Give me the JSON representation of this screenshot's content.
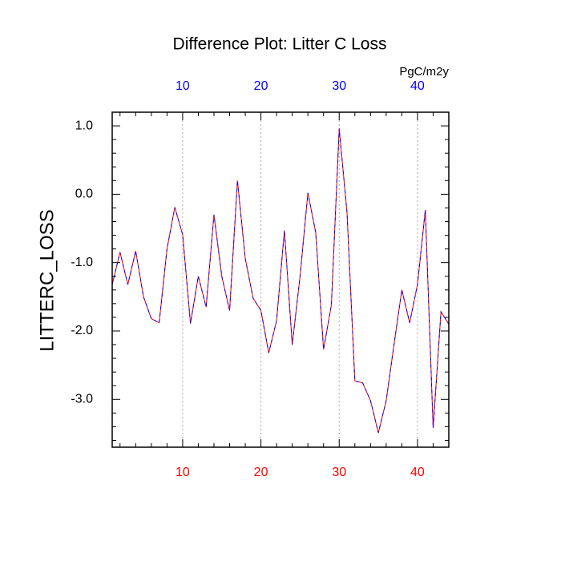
{
  "chart_data": {
    "type": "line",
    "title": "Difference Plot: Litter C Loss",
    "ylabel": "LITTERC_LOSS",
    "units": "PgC/m2y",
    "x": [
      1,
      2,
      3,
      4,
      5,
      6,
      7,
      8,
      9,
      10,
      11,
      12,
      13,
      14,
      15,
      16,
      17,
      18,
      19,
      20,
      21,
      22,
      23,
      24,
      25,
      26,
      27,
      28,
      29,
      30,
      31,
      32,
      33,
      34,
      35,
      36,
      37,
      38,
      39,
      40,
      41,
      42,
      43,
      44
    ],
    "series": [
      {
        "color": "#ff0000",
        "values": [
          -1.32,
          -0.85,
          -1.32,
          -0.83,
          -1.5,
          -1.82,
          -1.88,
          -0.8,
          -0.19,
          -0.59,
          -1.89,
          -1.2,
          -1.65,
          -0.3,
          -1.2,
          -1.7,
          0.2,
          -0.94,
          -1.52,
          -1.7,
          -2.32,
          -1.85,
          -0.53,
          -2.2,
          -1.2,
          0.02,
          -0.56,
          -2.27,
          -1.62,
          0.96,
          -0.27,
          -2.73,
          -2.76,
          -3.02,
          -3.49,
          -3.02,
          -2.2,
          -1.4,
          -1.88,
          -1.32,
          -0.23,
          -3.42,
          -1.72,
          -1.9
        ]
      },
      {
        "color": "#0000ff",
        "values": [
          -1.32,
          -0.85,
          -1.32,
          -0.83,
          -1.5,
          -1.82,
          -1.88,
          -0.8,
          -0.19,
          -0.59,
          -1.89,
          -1.2,
          -1.65,
          -0.3,
          -1.2,
          -1.7,
          0.2,
          -0.94,
          -1.52,
          -1.7,
          -2.32,
          -1.85,
          -0.53,
          -2.2,
          -1.2,
          0.02,
          -0.56,
          -2.27,
          -1.62,
          0.96,
          -0.27,
          -2.73,
          -2.76,
          -3.02,
          -3.49,
          -3.02,
          -2.2,
          -1.4,
          -1.88,
          -1.32,
          -0.23,
          -3.42,
          -1.72,
          -1.9
        ]
      }
    ],
    "xlim": [
      1,
      44
    ],
    "xticks": [
      10,
      20,
      30,
      40
    ],
    "xminorticks": [
      2,
      4,
      6,
      8,
      12,
      14,
      16,
      18,
      22,
      24,
      26,
      28,
      32,
      34,
      36,
      38,
      42,
      44
    ],
    "bottom_tick_color": "#ff0000",
    "top_tick_color": "#0000ff",
    "ylim": [
      -3.7,
      1.2
    ],
    "yticks": [
      {
        "value": 1,
        "label": "1.0"
      },
      {
        "value": 0,
        "label": "0.0"
      },
      {
        "value": -1,
        "label": "-1.0"
      },
      {
        "value": -2,
        "label": "-2.0"
      },
      {
        "value": -3,
        "label": "-3.0"
      }
    ],
    "yminorticks": [
      -3.6,
      -3.4,
      -3.2,
      -2.8,
      -2.6,
      -2.4,
      -2.2,
      -1.8,
      -1.6,
      -1.4,
      -1.2,
      -0.8,
      -0.6,
      -0.4,
      -0.2,
      0.2,
      0.4,
      0.6,
      0.8,
      1.2
    ],
    "grid": true
  }
}
